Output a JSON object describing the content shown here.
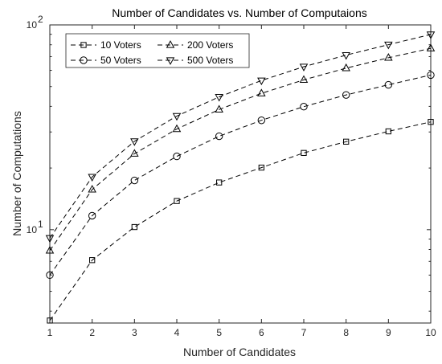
{
  "chart_data": {
    "type": "line",
    "title": "Number of Candidates vs. Number of Computaions",
    "xlabel": "Number of Candidates",
    "ylabel": "Number of Computations",
    "x": [
      1,
      2,
      3,
      4,
      5,
      6,
      7,
      8,
      9,
      10
    ],
    "xlim": [
      1,
      10
    ],
    "ylim": [
      3.5,
      100
    ],
    "y_scale": "log",
    "x_ticks": [
      "1",
      "2",
      "3",
      "4",
      "5",
      "6",
      "7",
      "8",
      "9",
      "10"
    ],
    "y_ticks": [
      {
        "value": 10,
        "base": "10",
        "exp": "1"
      },
      {
        "value": 100,
        "base": "10",
        "exp": "2"
      }
    ],
    "grid": false,
    "legend_position": "top-left",
    "line_style": "dashed",
    "color": "#000000",
    "series": [
      {
        "name": "10 Voters",
        "marker": "square",
        "values": [
          3.6,
          7.1,
          10.3,
          13.8,
          17.0,
          20.1,
          23.7,
          26.9,
          30.2,
          33.6
        ]
      },
      {
        "name": "50 Voters",
        "marker": "circle",
        "values": [
          6.0,
          11.7,
          17.4,
          22.8,
          28.6,
          34.2,
          39.9,
          45.5,
          51.0,
          56.9
        ]
      },
      {
        "name": "200 Voters",
        "marker": "triangle-up",
        "values": [
          7.9,
          15.7,
          23.5,
          31.0,
          38.6,
          46.3,
          53.9,
          61.5,
          69.1,
          76.8
        ]
      },
      {
        "name": "500 Voters",
        "marker": "triangle-down",
        "values": [
          9.1,
          18.1,
          27.0,
          35.9,
          44.5,
          53.5,
          62.5,
          71.2,
          80.1,
          89.8
        ]
      }
    ]
  }
}
